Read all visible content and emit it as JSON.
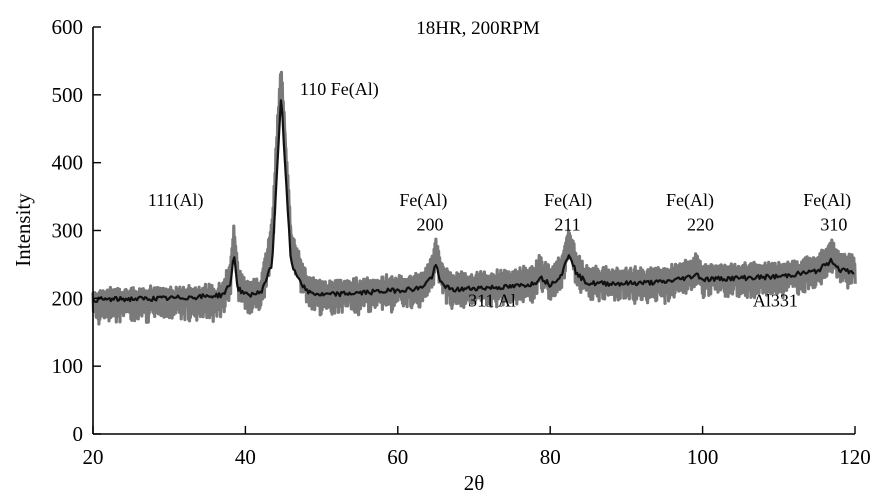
{
  "chart_data": {
    "type": "line",
    "title": "18HR, 200RPM",
    "xlabel": "2θ",
    "ylabel": "Intensity",
    "xlim": [
      20,
      120
    ],
    "ylim": [
      0,
      600
    ],
    "x_ticks": [
      20,
      40,
      60,
      80,
      100,
      120
    ],
    "y_ticks": [
      0,
      100,
      200,
      300,
      400,
      500,
      600
    ],
    "grid": false,
    "colors": {
      "raw": "#7a7a7a",
      "smoothed": "#111111",
      "axis": "#000000"
    },
    "series": [
      {
        "style": "raw-band",
        "x": [
          20,
          25,
          30,
          35,
          37,
          38,
          38.5,
          39,
          40,
          42,
          43.5,
          44.3,
          44.7,
          45.1,
          46,
          48,
          50,
          55,
          60,
          63,
          64.5,
          65,
          65.5,
          67,
          70,
          75,
          78,
          78.6,
          80,
          81.5,
          82.5,
          83.5,
          85,
          90,
          95,
          98.5,
          99.2,
          100,
          105,
          110,
          115,
          117,
          118,
          120
        ],
        "y": [
          200,
          202,
          203,
          205,
          207,
          240,
          300,
          235,
          212,
          215,
          300,
          470,
          530,
          460,
          285,
          225,
          212,
          215,
          220,
          222,
          250,
          278,
          245,
          222,
          225,
          228,
          235,
          250,
          232,
          250,
          290,
          252,
          232,
          230,
          232,
          245,
          250,
          238,
          238,
          240,
          248,
          272,
          255,
          250
        ],
        "spread": 24
      },
      {
        "style": "smoothed",
        "x": [
          20,
          25,
          30,
          35,
          37,
          38,
          38.5,
          39,
          40,
          42,
          43.5,
          44.3,
          44.7,
          45.1,
          46,
          48,
          50,
          55,
          60,
          63,
          64.5,
          65,
          65.5,
          67,
          70,
          75,
          78,
          78.6,
          80,
          81.5,
          82.5,
          83.5,
          85,
          90,
          95,
          98.5,
          99.2,
          100,
          105,
          110,
          115,
          117,
          118,
          120
        ],
        "y": [
          198,
          199,
          200,
          203,
          205,
          220,
          265,
          215,
          205,
          208,
          250,
          420,
          500,
          415,
          250,
          210,
          205,
          208,
          212,
          215,
          232,
          250,
          225,
          212,
          215,
          217,
          222,
          232,
          220,
          235,
          267,
          235,
          222,
          222,
          224,
          232,
          236,
          228,
          230,
          232,
          240,
          256,
          242,
          238
        ]
      }
    ],
    "annotations": [
      {
        "text": "111(Al)",
        "x": 34.5,
        "y": 336
      },
      {
        "text": "110 Fe(Al)",
        "x": 57.5,
        "y": 500
      },
      {
        "text": "Fe(Al)",
        "x": 66.5,
        "y": 336
      },
      {
        "text": "200",
        "x": 66,
        "y": 300
      },
      {
        "text": "311 Al",
        "x": 75.5,
        "y": 188
      },
      {
        "text": "Fe(Al)",
        "x": 85.5,
        "y": 336
      },
      {
        "text": "211",
        "x": 84,
        "y": 300
      },
      {
        "text": "Fe(Al)",
        "x": 101.5,
        "y": 336
      },
      {
        "text": "220",
        "x": 101.5,
        "y": 300
      },
      {
        "text": "Fe(Al)",
        "x": 119.5,
        "y": 336
      },
      {
        "text": "310",
        "x": 119,
        "y": 300
      },
      {
        "text": "Al331",
        "x": 112.5,
        "y": 188
      }
    ]
  }
}
